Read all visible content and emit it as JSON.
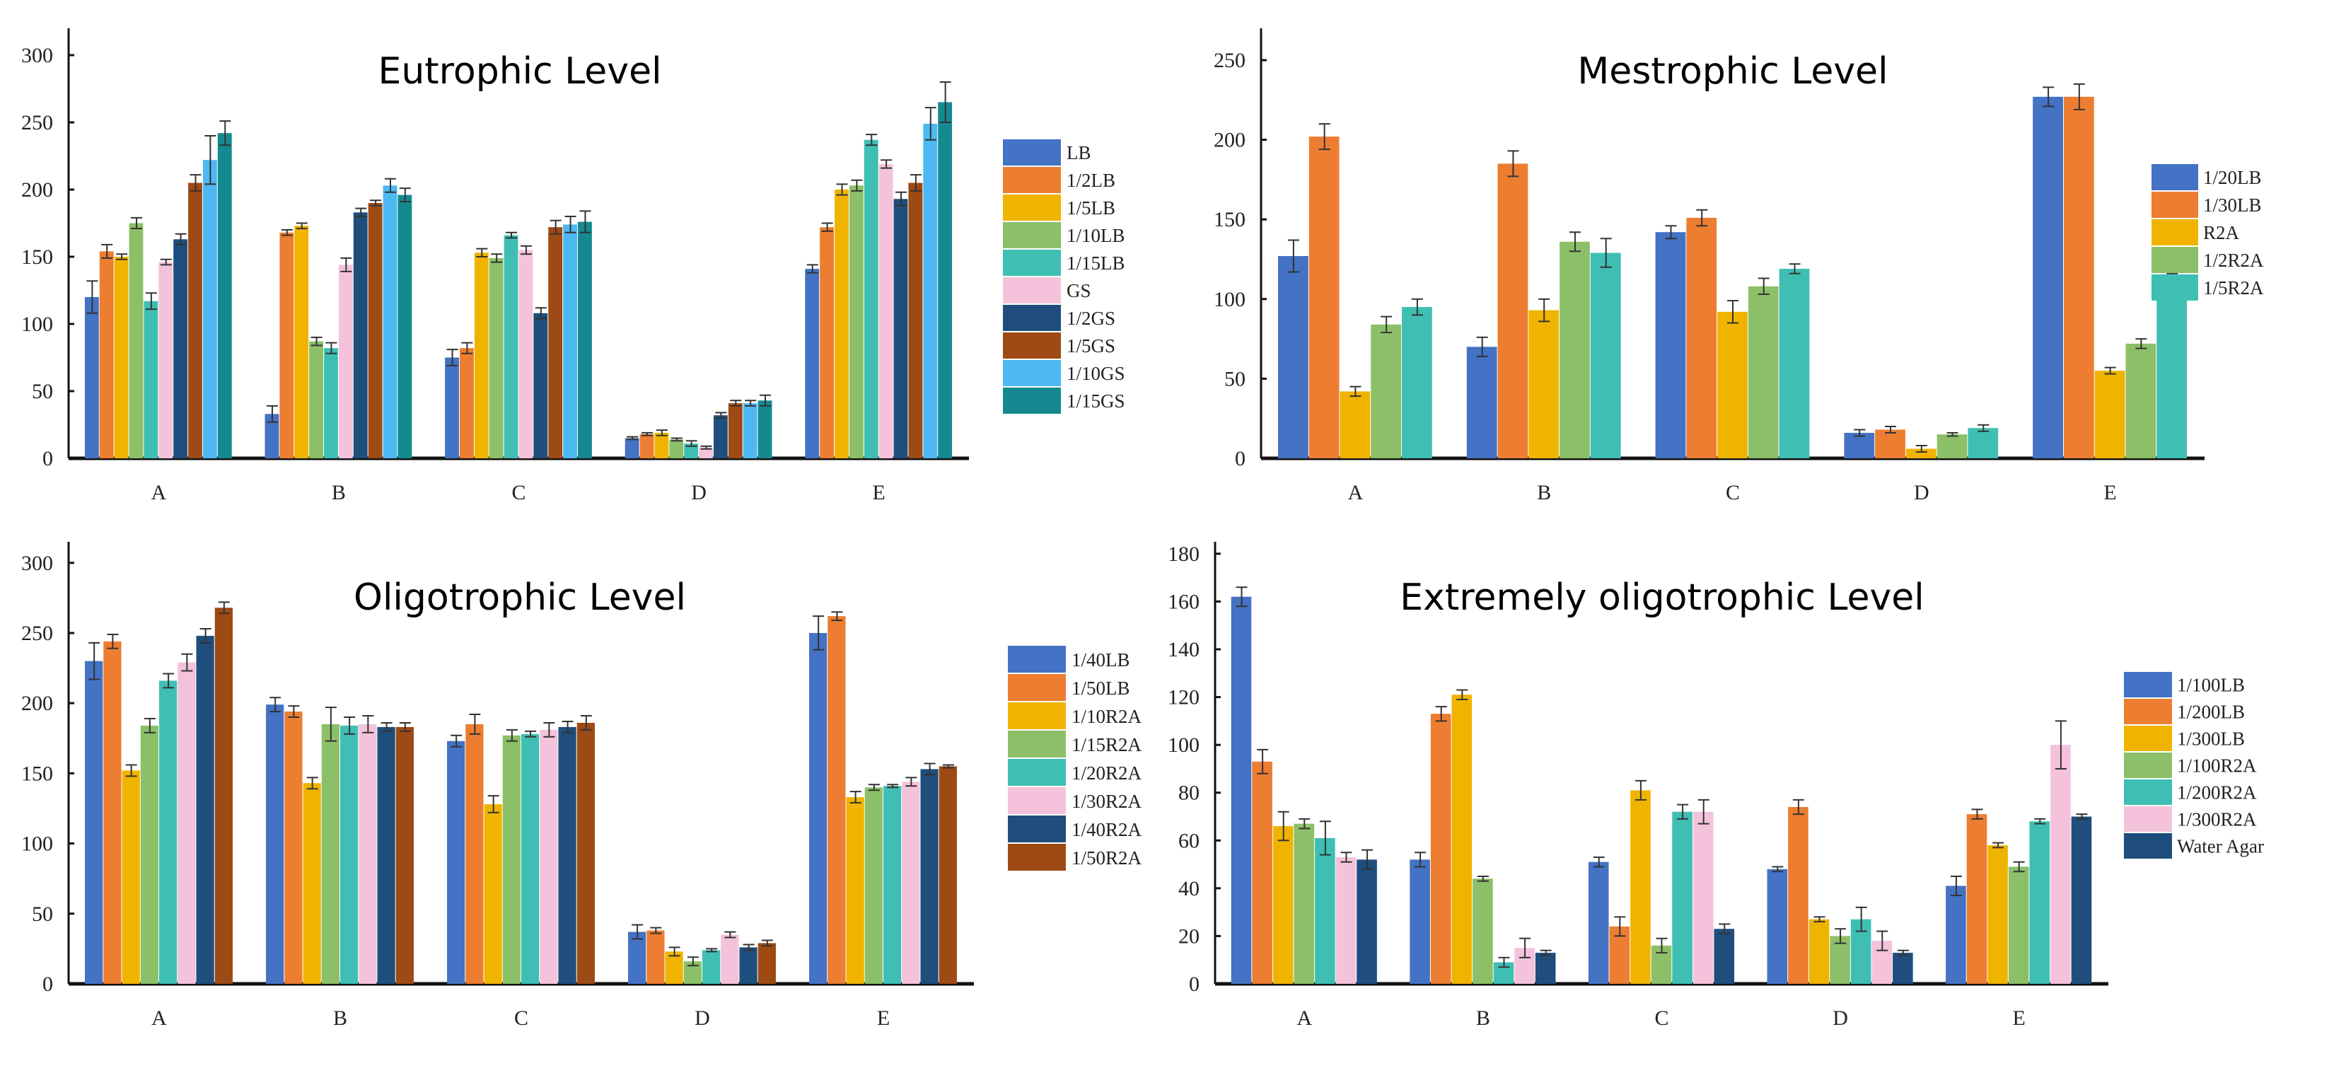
{
  "chart_data": [
    {
      "type": "bar",
      "title": "Eutrophic Level",
      "categories": [
        "A",
        "B",
        "C",
        "D",
        "E"
      ],
      "ylim": [
        0,
        320
      ],
      "yticks": [
        0,
        50,
        100,
        150,
        200,
        250,
        300
      ],
      "legend_position": "right",
      "series": [
        {
          "name": "LB",
          "color": "#4472C4",
          "values": [
            120,
            33,
            75,
            15,
            141
          ],
          "errors": [
            12,
            6,
            6,
            1,
            3
          ]
        },
        {
          "name": "1/2LB",
          "color": "#ED7D31",
          "values": [
            154,
            168,
            82,
            18,
            172
          ],
          "errors": [
            5,
            2,
            4,
            1,
            3
          ]
        },
        {
          "name": "1/5LB",
          "color": "#F0B400",
          "values": [
            150,
            173,
            153,
            19,
            200
          ],
          "errors": [
            2,
            2,
            3,
            2,
            4
          ]
        },
        {
          "name": "1/10LB",
          "color": "#8CC068",
          "values": [
            175,
            87,
            149,
            14,
            203
          ],
          "errors": [
            4,
            3,
            3,
            1,
            4
          ]
        },
        {
          "name": "1/15LB",
          "color": "#3FBFB4",
          "values": [
            117,
            82,
            166,
            11,
            237
          ],
          "errors": [
            6,
            4,
            2,
            2,
            4
          ]
        },
        {
          "name": "GS",
          "color": "#F4C3DB",
          "values": [
            146,
            144,
            155,
            8,
            219
          ],
          "errors": [
            2,
            5,
            3,
            1,
            3
          ]
        },
        {
          "name": "1/2GS",
          "color": "#1F4E7D",
          "values": [
            163,
            183,
            108,
            32,
            193
          ],
          "errors": [
            4,
            3,
            4,
            2,
            5
          ]
        },
        {
          "name": "1/5GS",
          "color": "#9E4A14",
          "values": [
            205,
            190,
            172,
            41,
            205
          ],
          "errors": [
            6,
            2,
            5,
            2,
            6
          ]
        },
        {
          "name": "1/10GS",
          "color": "#4DB9F3",
          "values": [
            222,
            203,
            174,
            41,
            249
          ],
          "errors": [
            18,
            5,
            6,
            2,
            12
          ]
        },
        {
          "name": "1/15GS",
          "color": "#148A90",
          "values": [
            242,
            196,
            176,
            43,
            265
          ],
          "errors": [
            9,
            5,
            8,
            4,
            15
          ]
        }
      ]
    },
    {
      "type": "bar",
      "title": "Mestrophic Level",
      "categories": [
        "A",
        "B",
        "C",
        "D",
        "E"
      ],
      "ylim": [
        0,
        270
      ],
      "yticks": [
        0,
        50,
        100,
        150,
        200,
        250
      ],
      "legend_position": "right",
      "series": [
        {
          "name": "1/20LB",
          "color": "#4472C4",
          "values": [
            127,
            70,
            142,
            16,
            227
          ],
          "errors": [
            10,
            6,
            4,
            2,
            6
          ]
        },
        {
          "name": "1/30LB",
          "color": "#ED7D31",
          "values": [
            202,
            185,
            151,
            18,
            227
          ],
          "errors": [
            8,
            8,
            5,
            2,
            8
          ]
        },
        {
          "name": "R2A",
          "color": "#F0B400",
          "values": [
            42,
            93,
            92,
            6,
            55
          ],
          "errors": [
            3,
            7,
            7,
            2,
            2
          ]
        },
        {
          "name": "1/2R2A",
          "color": "#8CC068",
          "values": [
            84,
            136,
            108,
            15,
            72
          ],
          "errors": [
            5,
            6,
            5,
            1,
            3
          ]
        },
        {
          "name": "1/5R2A",
          "color": "#3FBFB4",
          "values": [
            95,
            129,
            119,
            19,
            113
          ],
          "errors": [
            5,
            9,
            3,
            2,
            3
          ]
        }
      ]
    },
    {
      "type": "bar",
      "title": "Oligotrophic Level",
      "categories": [
        "A",
        "B",
        "C",
        "D",
        "E"
      ],
      "ylim": [
        0,
        315
      ],
      "yticks": [
        0,
        50,
        100,
        150,
        200,
        250,
        300
      ],
      "legend_position": "right",
      "series": [
        {
          "name": "1/40LB",
          "color": "#4472C4",
          "values": [
            230,
            199,
            173,
            37,
            250
          ],
          "errors": [
            13,
            5,
            4,
            5,
            12
          ]
        },
        {
          "name": "1/50LB",
          "color": "#ED7D31",
          "values": [
            244,
            194,
            185,
            38,
            262
          ],
          "errors": [
            5,
            4,
            7,
            2,
            3
          ]
        },
        {
          "name": "1/10R2A",
          "color": "#F0B400",
          "values": [
            152,
            143,
            128,
            23,
            133
          ],
          "errors": [
            4,
            4,
            6,
            3,
            4
          ]
        },
        {
          "name": "1/15R2A",
          "color": "#8CC068",
          "values": [
            184,
            185,
            177,
            16,
            140
          ],
          "errors": [
            5,
            12,
            4,
            3,
            2
          ]
        },
        {
          "name": "1/20R2A",
          "color": "#3FBFB4",
          "values": [
            216,
            184,
            178,
            24,
            141
          ],
          "errors": [
            5,
            6,
            2,
            1,
            1
          ]
        },
        {
          "name": "1/30R2A",
          "color": "#F4C3DB",
          "values": [
            229,
            185,
            181,
            35,
            144
          ],
          "errors": [
            6,
            6,
            5,
            2,
            3
          ]
        },
        {
          "name": "1/40R2A",
          "color": "#1F4E7D",
          "values": [
            248,
            183,
            183,
            26,
            153
          ],
          "errors": [
            5,
            3,
            4,
            2,
            4
          ]
        },
        {
          "name": "1/50R2A",
          "color": "#9E4A14",
          "values": [
            268,
            183,
            186,
            29,
            155
          ],
          "errors": [
            4,
            3,
            5,
            2,
            1
          ]
        }
      ]
    },
    {
      "type": "bar",
      "title": "Extremely oligotrophic Level",
      "categories": [
        "A",
        "B",
        "C",
        "D",
        "E"
      ],
      "ylim": [
        0,
        185
      ],
      "yticks": [
        0,
        20,
        40,
        60,
        80,
        100,
        120,
        140,
        160,
        180
      ],
      "legend_position": "right",
      "series": [
        {
          "name": "1/100LB",
          "color": "#4472C4",
          "values": [
            162,
            52,
            51,
            48,
            41
          ],
          "errors": [
            4,
            3,
            2,
            1,
            4
          ]
        },
        {
          "name": "1/200LB",
          "color": "#ED7D31",
          "values": [
            93,
            113,
            24,
            74,
            71
          ],
          "errors": [
            5,
            3,
            4,
            3,
            2
          ]
        },
        {
          "name": "1/300LB",
          "color": "#F0B400",
          "values": [
            66,
            121,
            81,
            27,
            58
          ],
          "errors": [
            6,
            2,
            4,
            1,
            1
          ]
        },
        {
          "name": "1/100R2A",
          "color": "#8CC068",
          "values": [
            67,
            44,
            16,
            20,
            49
          ],
          "errors": [
            2,
            1,
            3,
            3,
            2
          ]
        },
        {
          "name": "1/200R2A",
          "color": "#3FBFB4",
          "values": [
            61,
            9,
            72,
            27,
            68
          ],
          "errors": [
            7,
            2,
            3,
            5,
            1
          ]
        },
        {
          "name": "1/300R2A",
          "color": "#F4C3DB",
          "values": [
            53,
            15,
            72,
            18,
            100
          ],
          "errors": [
            2,
            4,
            5,
            4,
            10
          ]
        },
        {
          "name": "Water Agar",
          "color": "#1F4E7D",
          "values": [
            52,
            13,
            23,
            13,
            70
          ],
          "errors": [
            4,
            1,
            2,
            1,
            1
          ]
        }
      ]
    }
  ]
}
